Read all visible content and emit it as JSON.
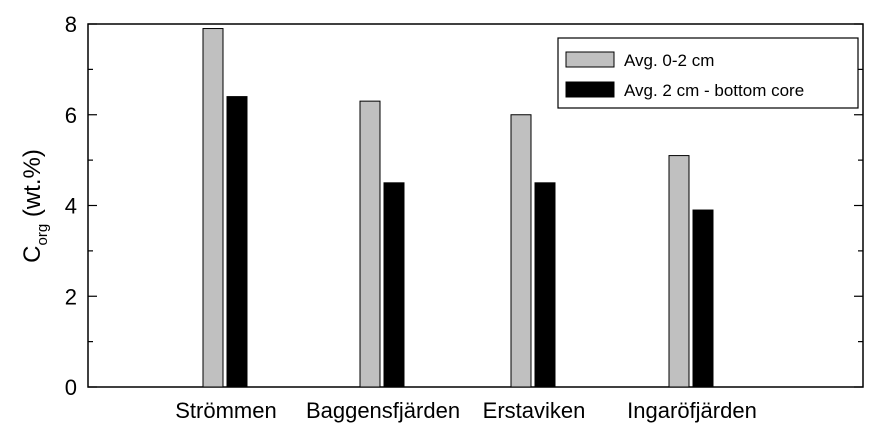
{
  "chart_data": {
    "type": "bar",
    "categories": [
      "Strömmen",
      "Baggensfjärden",
      "Erstaviken",
      "Ingaröfjärden"
    ],
    "series": [
      {
        "name": "Avg. 0-2 cm",
        "values": [
          7.9,
          6.3,
          6.0,
          5.1
        ],
        "color": "#c0c0c0"
      },
      {
        "name": "Avg. 2 cm - bottom core",
        "values": [
          6.4,
          4.5,
          4.5,
          3.9
        ],
        "color": "#000000"
      }
    ],
    "ylabel_main": "C",
    "ylabel_sub": "org",
    "ylabel_rest": " (wt.%)",
    "ylim": [
      0,
      8
    ],
    "yticks": [
      0,
      2,
      4,
      6,
      8
    ],
    "legend_position": "top-right",
    "grid": false
  }
}
